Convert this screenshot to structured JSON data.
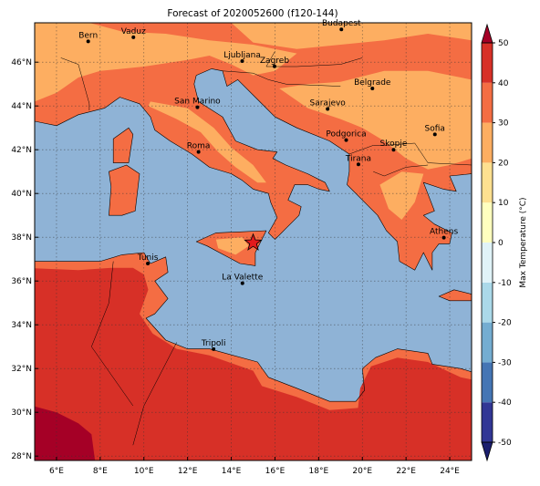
{
  "title": "Forecast of 2020052600 (f120-144)",
  "map": {
    "xlim": [
      5,
      25
    ],
    "ylim": [
      27.8,
      47.8
    ],
    "xticks": [
      {
        "value": 6,
        "label": "6°E"
      },
      {
        "value": 8,
        "label": "8°E"
      },
      {
        "value": 10,
        "label": "10°E"
      },
      {
        "value": 12,
        "label": "12°E"
      },
      {
        "value": 14,
        "label": "14°E"
      },
      {
        "value": 16,
        "label": "16°E"
      },
      {
        "value": 18,
        "label": "18°E"
      },
      {
        "value": 20,
        "label": "20°E"
      },
      {
        "value": 22,
        "label": "22°E"
      },
      {
        "value": 24,
        "label": "24°E"
      }
    ],
    "yticks": [
      {
        "value": 28,
        "label": "28°N"
      },
      {
        "value": 30,
        "label": "30°N"
      },
      {
        "value": 32,
        "label": "32°N"
      },
      {
        "value": 34,
        "label": "34°N"
      },
      {
        "value": 36,
        "label": "36°N"
      },
      {
        "value": 38,
        "label": "38°N"
      },
      {
        "value": 40,
        "label": "40°N"
      },
      {
        "value": 42,
        "label": "42°N"
      },
      {
        "value": 44,
        "label": "44°N"
      },
      {
        "value": 46,
        "label": "46°N"
      }
    ],
    "grid": true,
    "ocean_color": "#8fb3d6"
  },
  "colorbar": {
    "label": "Max Temperature (°C)",
    "ticks": [
      -50,
      -40,
      -30,
      -20,
      -10,
      0,
      10,
      20,
      30,
      40,
      50
    ],
    "colors": [
      "#313695",
      "#4575b4",
      "#74add1",
      "#abd9e9",
      "#e0f3f8",
      "#ffffbf",
      "#fee090",
      "#fdae61",
      "#f46d43",
      "#d73027"
    ],
    "under_color": "#1b1e6e",
    "over_color": "#a50026"
  },
  "cities": [
    {
      "name": "Bern",
      "lon": 7.45,
      "lat": 46.95
    },
    {
      "name": "Vaduz",
      "lon": 9.52,
      "lat": 47.14
    },
    {
      "name": "Ljubljana",
      "lon": 14.5,
      "lat": 46.05
    },
    {
      "name": "Zagreb",
      "lon": 15.98,
      "lat": 45.81
    },
    {
      "name": "Budapest",
      "lon": 19.04,
      "lat": 47.5
    },
    {
      "name": "San Marino",
      "lon": 12.45,
      "lat": 43.94
    },
    {
      "name": "Belgrade",
      "lon": 20.46,
      "lat": 44.8
    },
    {
      "name": "Sarajevo",
      "lon": 18.41,
      "lat": 43.86
    },
    {
      "name": "Roma",
      "lon": 12.5,
      "lat": 41.9
    },
    {
      "name": "Podgorica",
      "lon": 19.26,
      "lat": 42.44
    },
    {
      "name": "Skopje",
      "lon": 21.43,
      "lat": 42.0
    },
    {
      "name": "Sofia",
      "lon": 23.32,
      "lat": 42.7
    },
    {
      "name": "Tirana",
      "lon": 19.82,
      "lat": 41.33
    },
    {
      "name": "Athens",
      "lon": 23.73,
      "lat": 37.98
    },
    {
      "name": "Tunis",
      "lon": 10.18,
      "lat": 36.8
    },
    {
      "name": "La Valette",
      "lon": 14.51,
      "lat": 35.9
    },
    {
      "name": "Tripoli",
      "lon": 13.19,
      "lat": 32.89
    }
  ],
  "marker": {
    "lon": 15.0,
    "lat": 37.75,
    "color": "#e31a1c"
  }
}
